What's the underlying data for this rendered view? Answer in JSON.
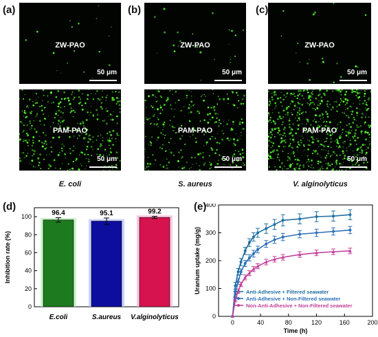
{
  "panels": {
    "a": {
      "letter": "(a)",
      "species": "E. coli",
      "top_label": "ZW-PAO",
      "bottom_label": "PAM-PAO",
      "scale": "50 μm"
    },
    "b": {
      "letter": "(b)",
      "species": "S. aureus",
      "top_label": "ZW-PAO",
      "bottom_label": "PAM-PAO",
      "scale": "50 μm"
    },
    "c": {
      "letter": "(c)",
      "species": "V. alginolyticus",
      "top_label": "ZW-PAO",
      "bottom_label": "PAM-PAO",
      "scale": "50 μm"
    },
    "d": {
      "letter": "(d)"
    },
    "e": {
      "letter": "(e)"
    }
  },
  "chart_data": [
    {
      "type": "bar",
      "title": "",
      "ylabel": "Inhibition rate (%)",
      "xlabel": "",
      "categories": [
        "E.coli",
        "S.aureus",
        "V.alginolyticus"
      ],
      "values": [
        96.4,
        95.1,
        99.2
      ],
      "errors": [
        2.5,
        3.5,
        1.2
      ],
      "data_labels": [
        "96.4",
        "95.1",
        "99.2"
      ],
      "colors": [
        "#1e7a1e",
        "#0d0d9e",
        "#d6134f"
      ],
      "glow_colors": [
        "#b7f0b7",
        "#b8c0ff",
        "#f7b2d7"
      ],
      "ylim": [
        0,
        110
      ],
      "yticks": [
        0,
        20,
        40,
        60,
        80,
        100
      ],
      "grid": false
    },
    {
      "type": "line",
      "title": "",
      "xlabel": "Time (h)",
      "ylabel": "Uranium uptake (mg/g)",
      "xlim": [
        -20,
        200
      ],
      "ylim": [
        0,
        400
      ],
      "xticks": [
        0,
        40,
        80,
        120,
        160,
        200
      ],
      "yticks": [
        0,
        100,
        200,
        300,
        400
      ],
      "x": [
        0,
        4,
        8,
        12,
        18,
        24,
        30,
        36,
        48,
        60,
        72,
        96,
        120,
        144,
        168
      ],
      "legend_position": "bottom-right",
      "grid": false,
      "series": [
        {
          "name": "Anti-Adhesive + Filtered seawater",
          "color": "#1f6fa3",
          "values": [
            0,
            110,
            160,
            195,
            235,
            265,
            285,
            300,
            315,
            330,
            345,
            350,
            358,
            360,
            365
          ],
          "errors": [
            0,
            12,
            12,
            13,
            13,
            14,
            15,
            16,
            17,
            18,
            20,
            18,
            18,
            18,
            18
          ]
        },
        {
          "name": "Anti-Adhesive + Non-Filtered seawater",
          "color": "#2d6fb8",
          "values": [
            0,
            80,
            125,
            160,
            190,
            210,
            225,
            240,
            260,
            275,
            285,
            295,
            300,
            305,
            310
          ],
          "errors": [
            0,
            10,
            10,
            10,
            11,
            11,
            12,
            12,
            12,
            13,
            13,
            13,
            13,
            13,
            13
          ]
        },
        {
          "name": "Non-Anti-Adhesive + Non-Filtered seawater",
          "color": "#c2409a",
          "values": [
            0,
            60,
            90,
            115,
            140,
            155,
            170,
            180,
            195,
            205,
            212,
            222,
            228,
            232,
            235
          ],
          "errors": [
            0,
            8,
            8,
            8,
            9,
            9,
            9,
            9,
            10,
            10,
            10,
            10,
            10,
            10,
            10
          ]
        }
      ]
    }
  ]
}
